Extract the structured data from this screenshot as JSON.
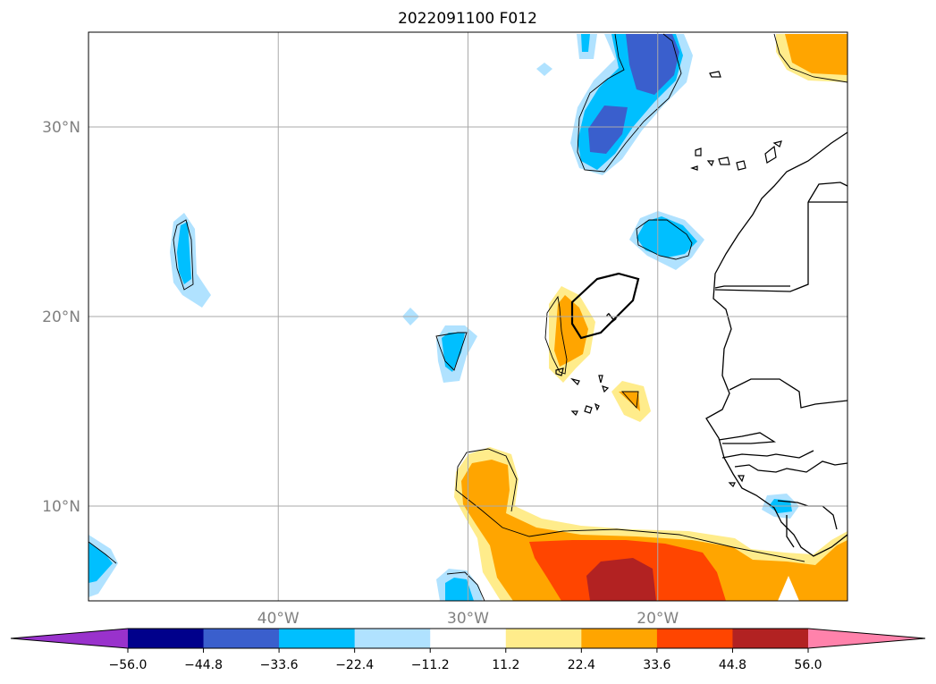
{
  "chart_data": {
    "type": "heatmap",
    "title": "2022091100 F012",
    "map": {
      "lon_range": [
        -50,
        -10
      ],
      "lat_range": [
        5,
        35
      ],
      "grid": true,
      "lon_ticks": [
        {
          "value": -40,
          "label": "40°W"
        },
        {
          "value": -30,
          "label": "30°W"
        },
        {
          "value": -20,
          "label": "20°W"
        }
      ],
      "lat_ticks": [
        {
          "value": 10,
          "label": "10°N"
        },
        {
          "value": 20,
          "label": "20°N"
        },
        {
          "value": 30,
          "label": "30°N"
        }
      ],
      "contour_label": "1"
    },
    "colorbar": {
      "orientation": "horizontal",
      "position": "bottom",
      "extend": "both",
      "levels": [
        -67.2,
        -56.0,
        -44.8,
        -33.6,
        -22.4,
        -11.2,
        11.2,
        22.4,
        33.6,
        44.8,
        56.0,
        67.2
      ],
      "tick_values": [
        -56.0,
        -44.8,
        -33.6,
        -22.4,
        -11.2,
        11.2,
        22.4,
        33.6,
        44.8,
        56.0
      ],
      "tick_labels": [
        "−56.0",
        "−44.8",
        "−33.6",
        "−22.4",
        "−11.2",
        "11.2",
        "22.4",
        "33.6",
        "44.8",
        "56.0"
      ],
      "colors": [
        "#9932cc",
        "#00008b",
        "#3a5fcd",
        "#00bfff",
        "#b0e2ff",
        "#ffffff",
        "#ffec8b",
        "#ffa500",
        "#ff4500",
        "#b22222",
        "#ff82ab"
      ]
    }
  }
}
